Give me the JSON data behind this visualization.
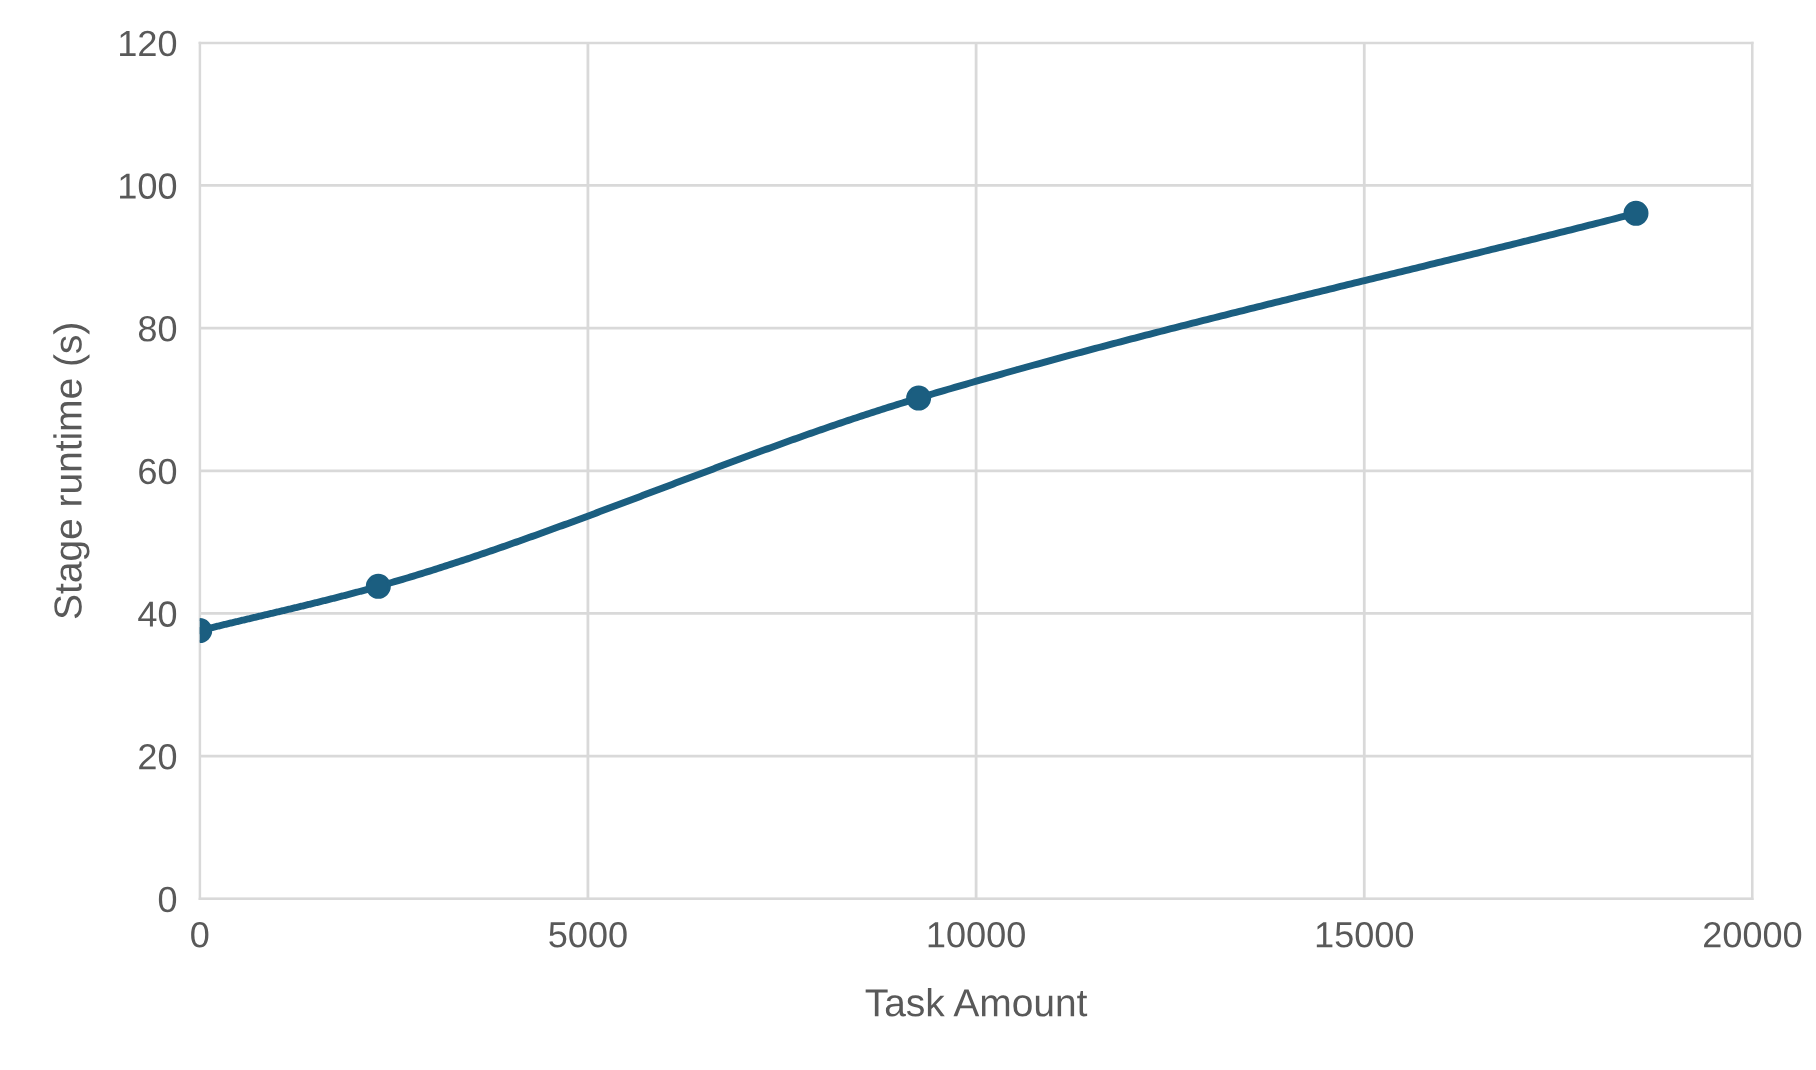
{
  "chart_data": {
    "type": "line",
    "xlabel": "Task Amount",
    "ylabel": "Stage runtime (s)",
    "x": [
      0,
      2300,
      9260,
      18500
    ],
    "series": [
      {
        "color": "#1b5e80",
        "values": [
          37.6,
          43.8,
          70.2,
          96.1
        ]
      }
    ],
    "xlim": [
      0,
      20000
    ],
    "xticks": [
      0,
      5000,
      10000,
      15000,
      20000
    ],
    "ylim": [
      0,
      120
    ],
    "yticks": [
      0,
      20,
      40,
      60,
      80,
      100,
      120
    ],
    "grid": true,
    "marker": "circle",
    "line_style": "solid"
  }
}
